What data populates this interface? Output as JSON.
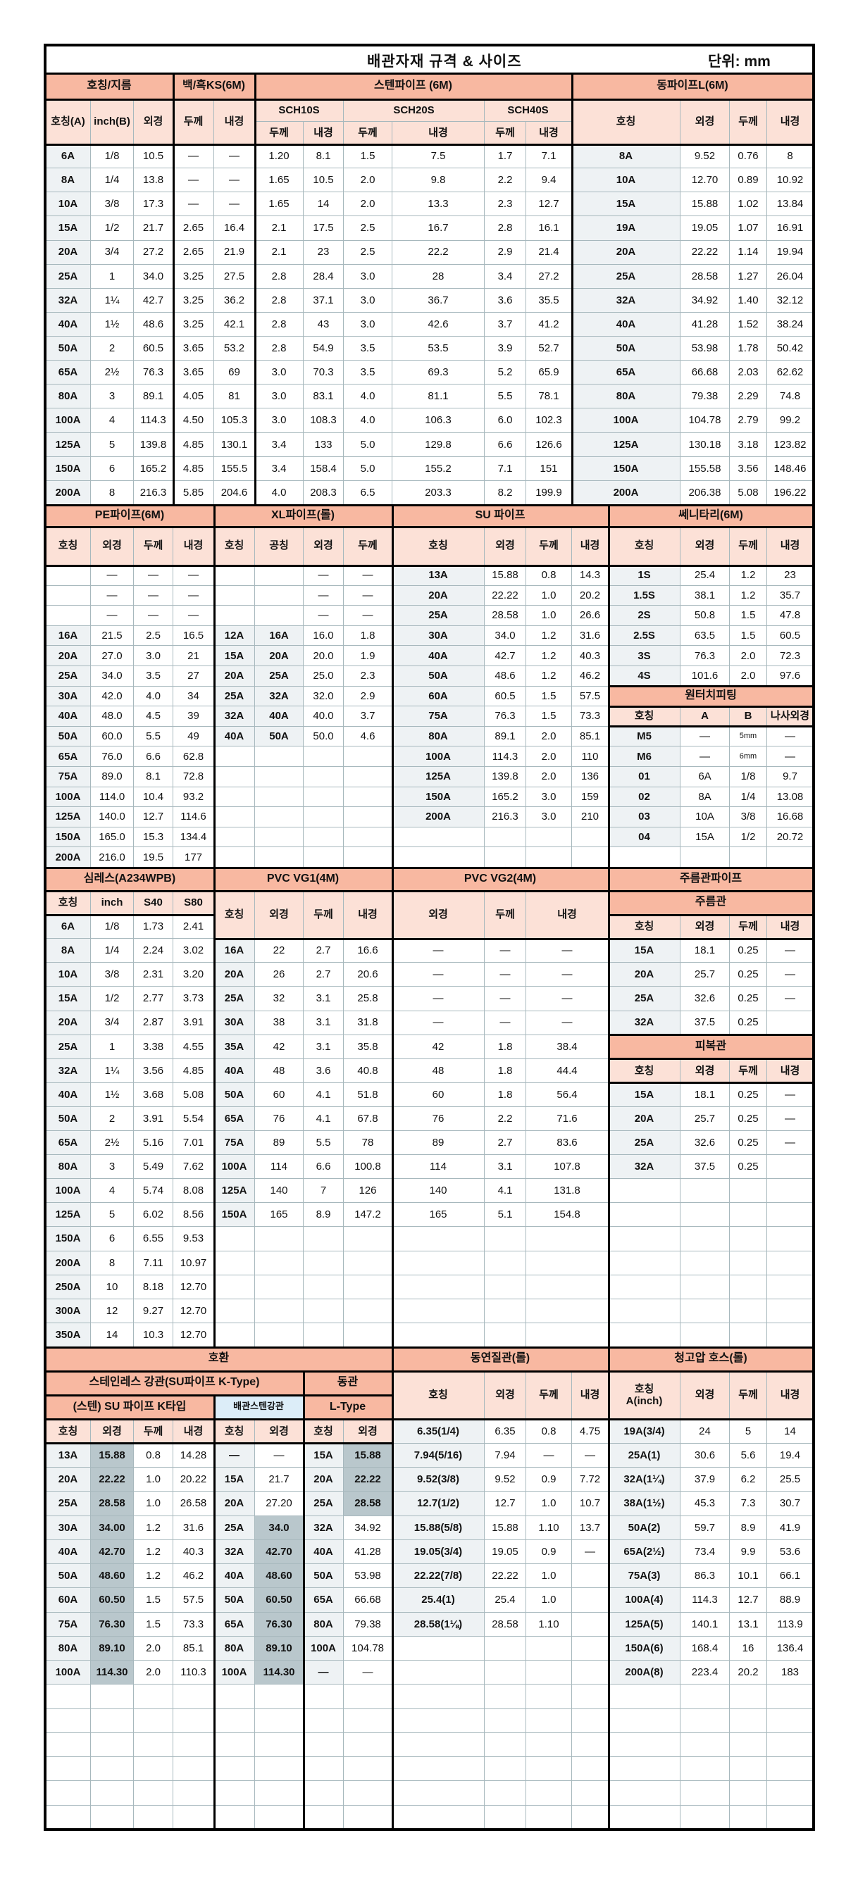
{
  "title": "배관자재 규격 & 사이즈",
  "unit": "단위: mm",
  "colors": {
    "section_header": "#f8b8a1",
    "column_header": "#fce1d7",
    "key_column": "#eef2f4",
    "highlight": "#b9c7cc",
    "sub_header_blue": "#dcedf8",
    "grid": "#a7b8bd"
  },
  "band1": {
    "groups": [
      "호칭/지름",
      "백/흑KS(6M)",
      "스텐파이프 (6M)",
      "동파이프L(6M)"
    ],
    "headers": [
      "호칭(A)",
      "inch(B)",
      "외경",
      "두께",
      "내경",
      "SCH10S",
      "두께",
      "내경",
      "SCH20S",
      "두께",
      "내경",
      "SCH40S",
      "두께",
      "내경",
      "호칭",
      "외경",
      "두께",
      "내경"
    ],
    "rows": [
      [
        "6A",
        "1/8",
        "10.5",
        "—",
        "—",
        "1.20",
        "8.1",
        "1.5",
        "7.5",
        "1.7",
        "7.1"
      ],
      [
        "8A",
        "1/4",
        "13.8",
        "—",
        "—",
        "1.65",
        "10.5",
        "2.0",
        "9.8",
        "2.2",
        "9.4"
      ],
      [
        "10A",
        "3/8",
        "17.3",
        "—",
        "—",
        "1.65",
        "14",
        "2.0",
        "13.3",
        "2.3",
        "12.7"
      ],
      [
        "15A",
        "1/2",
        "21.7",
        "2.65",
        "16.4",
        "2.1",
        "17.5",
        "2.5",
        "16.7",
        "2.8",
        "16.1"
      ],
      [
        "20A",
        "3/4",
        "27.2",
        "2.65",
        "21.9",
        "2.1",
        "23",
        "2.5",
        "22.2",
        "2.9",
        "21.4"
      ],
      [
        "25A",
        "1",
        "34.0",
        "3.25",
        "27.5",
        "2.8",
        "28.4",
        "3.0",
        "28",
        "3.4",
        "27.2"
      ],
      [
        "32A",
        "1¼",
        "42.7",
        "3.25",
        "36.2",
        "2.8",
        "37.1",
        "3.0",
        "36.7",
        "3.6",
        "35.5"
      ],
      [
        "40A",
        "1½",
        "48.6",
        "3.25",
        "42.1",
        "2.8",
        "43",
        "3.0",
        "42.6",
        "3.7",
        "41.2"
      ],
      [
        "50A",
        "2",
        "60.5",
        "3.65",
        "53.2",
        "2.8",
        "54.9",
        "3.5",
        "53.5",
        "3.9",
        "52.7"
      ],
      [
        "65A",
        "2½",
        "76.3",
        "3.65",
        "69",
        "3.0",
        "70.3",
        "3.5",
        "69.3",
        "5.2",
        "65.9"
      ],
      [
        "80A",
        "3",
        "89.1",
        "4.05",
        "81",
        "3.0",
        "83.1",
        "4.0",
        "81.1",
        "5.5",
        "78.1"
      ],
      [
        "100A",
        "4",
        "114.3",
        "4.50",
        "105.3",
        "3.0",
        "108.3",
        "4.0",
        "106.3",
        "6.0",
        "102.3"
      ],
      [
        "125A",
        "5",
        "139.8",
        "4.85",
        "130.1",
        "3.4",
        "133",
        "5.0",
        "129.8",
        "6.6",
        "126.6"
      ],
      [
        "150A",
        "6",
        "165.2",
        "4.85",
        "155.5",
        "3.4",
        "158.4",
        "5.0",
        "155.2",
        "7.1",
        "151"
      ],
      [
        "200A",
        "8",
        "216.3",
        "5.85",
        "204.6",
        "4.0",
        "208.3",
        "6.5",
        "203.3",
        "8.2",
        "199.9"
      ]
    ],
    "copper_rows": [
      [
        "8A",
        "9.52",
        "0.76",
        "8"
      ],
      [
        "10A",
        "12.70",
        "0.89",
        "10.92"
      ],
      [
        "15A",
        "15.88",
        "1.02",
        "13.84"
      ],
      [
        "19A",
        "19.05",
        "1.07",
        "16.91"
      ],
      [
        "20A",
        "22.22",
        "1.14",
        "19.94"
      ],
      [
        "25A",
        "28.58",
        "1.27",
        "26.04"
      ],
      [
        "32A",
        "34.92",
        "1.40",
        "32.12"
      ],
      [
        "40A",
        "41.28",
        "1.52",
        "38.24"
      ],
      [
        "50A",
        "53.98",
        "1.78",
        "50.42"
      ],
      [
        "65A",
        "66.68",
        "2.03",
        "62.62"
      ],
      [
        "80A",
        "79.38",
        "2.29",
        "74.8"
      ],
      [
        "100A",
        "104.78",
        "2.79",
        "99.2"
      ],
      [
        "125A",
        "130.18",
        "3.18",
        "123.82"
      ],
      [
        "150A",
        "155.58",
        "3.56",
        "148.46"
      ],
      [
        "200A",
        "206.38",
        "5.08",
        "196.22"
      ]
    ]
  },
  "band2": {
    "pe": {
      "title": "PE파이프(6M)",
      "headers": [
        "호칭",
        "외경",
        "두께",
        "내경"
      ],
      "rows": [
        [
          "",
          "—",
          "—",
          "—"
        ],
        [
          "",
          "—",
          "—",
          "—"
        ],
        [
          "",
          "—",
          "—",
          "—"
        ],
        [
          "16A",
          "21.5",
          "2.5",
          "16.5"
        ],
        [
          "20A",
          "27.0",
          "3.0",
          "21"
        ],
        [
          "25A",
          "34.0",
          "3.5",
          "27"
        ],
        [
          "30A",
          "42.0",
          "4.0",
          "34"
        ],
        [
          "40A",
          "48.0",
          "4.5",
          "39"
        ],
        [
          "50A",
          "60.0",
          "5.5",
          "49"
        ],
        [
          "65A",
          "76.0",
          "6.6",
          "62.8"
        ],
        [
          "75A",
          "89.0",
          "8.1",
          "72.8"
        ],
        [
          "100A",
          "114.0",
          "10.4",
          "93.2"
        ],
        [
          "125A",
          "140.0",
          "12.7",
          "114.6"
        ],
        [
          "150A",
          "165.0",
          "15.3",
          "134.4"
        ],
        [
          "200A",
          "216.0",
          "19.5",
          "177"
        ]
      ]
    },
    "xl": {
      "title": "XL파이프(롤)",
      "headers": [
        "호칭",
        "공칭",
        "외경",
        "두께"
      ],
      "rows": [
        [
          "",
          "",
          "—",
          "—"
        ],
        [
          "",
          "",
          "—",
          "—"
        ],
        [
          "",
          "",
          "—",
          "—"
        ],
        [
          "12A",
          "16A",
          "16.0",
          "1.8"
        ],
        [
          "15A",
          "20A",
          "20.0",
          "1.9"
        ],
        [
          "20A",
          "25A",
          "25.0",
          "2.3"
        ],
        [
          "25A",
          "32A",
          "32.0",
          "2.9"
        ],
        [
          "32A",
          "40A",
          "40.0",
          "3.7"
        ],
        [
          "40A",
          "50A",
          "50.0",
          "4.6"
        ]
      ]
    },
    "su": {
      "title": "SU 파이프",
      "headers": [
        "호칭",
        "외경",
        "두께",
        "내경"
      ],
      "rows": [
        [
          "13A",
          "15.88",
          "0.8",
          "14.3"
        ],
        [
          "20A",
          "22.22",
          "1.0",
          "20.2"
        ],
        [
          "25A",
          "28.58",
          "1.0",
          "26.6"
        ],
        [
          "30A",
          "34.0",
          "1.2",
          "31.6"
        ],
        [
          "40A",
          "42.7",
          "1.2",
          "40.3"
        ],
        [
          "50A",
          "48.6",
          "1.2",
          "46.2"
        ],
        [
          "60A",
          "60.5",
          "1.5",
          "57.5"
        ],
        [
          "75A",
          "76.3",
          "1.5",
          "73.3"
        ],
        [
          "80A",
          "89.1",
          "2.0",
          "85.1"
        ],
        [
          "100A",
          "114.3",
          "2.0",
          "110"
        ],
        [
          "125A",
          "139.8",
          "2.0",
          "136"
        ],
        [
          "150A",
          "165.2",
          "3.0",
          "159"
        ],
        [
          "200A",
          "216.3",
          "3.0",
          "210"
        ]
      ]
    },
    "sanitary": {
      "title": "쎄니타리(6M)",
      "headers": [
        "호칭",
        "외경",
        "두께",
        "내경"
      ],
      "rows": [
        [
          "1S",
          "25.4",
          "1.2",
          "23"
        ],
        [
          "1.5S",
          "38.1",
          "1.2",
          "35.7"
        ],
        [
          "2S",
          "50.8",
          "1.5",
          "47.8"
        ],
        [
          "2.5S",
          "63.5",
          "1.5",
          "60.5"
        ],
        [
          "3S",
          "76.3",
          "2.0",
          "72.3"
        ],
        [
          "4S",
          "101.6",
          "2.0",
          "97.6"
        ]
      ]
    },
    "fitting": {
      "title": "원터치피팅",
      "headers": [
        "호칭",
        "A",
        "B",
        "나사외경"
      ],
      "rows": [
        [
          "M5",
          "—",
          "5mm",
          "—"
        ],
        [
          "M6",
          "—",
          "6mm",
          "—"
        ],
        [
          "01",
          "6A",
          "1/8",
          "9.7"
        ],
        [
          "02",
          "8A",
          "1/4",
          "13.08"
        ],
        [
          "03",
          "10A",
          "3/8",
          "16.68"
        ],
        [
          "04",
          "15A",
          "1/2",
          "20.72"
        ]
      ]
    }
  },
  "band3": {
    "seamless": {
      "title": "심레스(A234WPB)",
      "headers": [
        "호칭",
        "inch",
        "S40",
        "S80"
      ],
      "rows": [
        [
          "6A",
          "1/8",
          "1.73",
          "2.41"
        ],
        [
          "8A",
          "1/4",
          "2.24",
          "3.02"
        ],
        [
          "10A",
          "3/8",
          "2.31",
          "3.20"
        ],
        [
          "15A",
          "1/2",
          "2.77",
          "3.73"
        ],
        [
          "20A",
          "3/4",
          "2.87",
          "3.91"
        ],
        [
          "25A",
          "1",
          "3.38",
          "4.55"
        ],
        [
          "32A",
          "1¼",
          "3.56",
          "4.85"
        ],
        [
          "40A",
          "1½",
          "3.68",
          "5.08"
        ],
        [
          "50A",
          "2",
          "3.91",
          "5.54"
        ],
        [
          "65A",
          "2½",
          "5.16",
          "7.01"
        ],
        [
          "80A",
          "3",
          "5.49",
          "7.62"
        ],
        [
          "100A",
          "4",
          "5.74",
          "8.08"
        ],
        [
          "125A",
          "5",
          "6.02",
          "8.56"
        ],
        [
          "150A",
          "6",
          "6.55",
          "9.53"
        ],
        [
          "200A",
          "8",
          "7.11",
          "10.97"
        ],
        [
          "250A",
          "10",
          "8.18",
          "12.70"
        ],
        [
          "300A",
          "12",
          "9.27",
          "12.70"
        ],
        [
          "350A",
          "14",
          "10.3",
          "12.70"
        ]
      ]
    },
    "vg1": {
      "title": "PVC VG1(4M)",
      "headers": [
        "호칭",
        "외경",
        "두께",
        "내경"
      ],
      "rows": [
        [
          "16A",
          "22",
          "2.7",
          "16.6"
        ],
        [
          "20A",
          "26",
          "2.7",
          "20.6"
        ],
        [
          "25A",
          "32",
          "3.1",
          "25.8"
        ],
        [
          "30A",
          "38",
          "3.1",
          "31.8"
        ],
        [
          "35A",
          "42",
          "3.1",
          "35.8"
        ],
        [
          "40A",
          "48",
          "3.6",
          "40.8"
        ],
        [
          "50A",
          "60",
          "4.1",
          "51.8"
        ],
        [
          "65A",
          "76",
          "4.1",
          "67.8"
        ],
        [
          "75A",
          "89",
          "5.5",
          "78"
        ],
        [
          "100A",
          "114",
          "6.6",
          "100.8"
        ],
        [
          "125A",
          "140",
          "7",
          "126"
        ],
        [
          "150A",
          "165",
          "8.9",
          "147.2"
        ]
      ]
    },
    "vg2": {
      "title": "PVC VG2(4M)",
      "headers": [
        "외경",
        "두께",
        "내경"
      ],
      "rows": [
        [
          "—",
          "—",
          "—"
        ],
        [
          "—",
          "—",
          "—"
        ],
        [
          "—",
          "—",
          "—"
        ],
        [
          "—",
          "—",
          "—"
        ],
        [
          "42",
          "1.8",
          "38.4"
        ],
        [
          "48",
          "1.8",
          "44.4"
        ],
        [
          "60",
          "1.8",
          "56.4"
        ],
        [
          "76",
          "2.2",
          "71.6"
        ],
        [
          "89",
          "2.7",
          "83.6"
        ],
        [
          "114",
          "3.1",
          "107.8"
        ],
        [
          "140",
          "4.1",
          "131.8"
        ],
        [
          "165",
          "5.1",
          "154.8"
        ]
      ]
    },
    "corrugated": {
      "title": "주름관파이프",
      "flex": {
        "title": "주름관",
        "headers": [
          "호칭",
          "외경",
          "두께",
          "내경"
        ],
        "rows": [
          [
            "15A",
            "18.1",
            "0.25",
            "—"
          ],
          [
            "20A",
            "25.7",
            "0.25",
            "—"
          ],
          [
            "25A",
            "32.6",
            "0.25",
            "—"
          ],
          [
            "32A",
            "37.5",
            "0.25",
            ""
          ]
        ]
      },
      "coated": {
        "title": "피복관",
        "headers": [
          "호칭",
          "외경",
          "두께",
          "내경"
        ],
        "rows": [
          [
            "15A",
            "18.1",
            "0.25",
            "—"
          ],
          [
            "20A",
            "25.7",
            "0.25",
            "—"
          ],
          [
            "25A",
            "32.6",
            "0.25",
            "—"
          ],
          [
            "32A",
            "37.5",
            "0.25",
            ""
          ]
        ]
      }
    }
  },
  "band4": {
    "compat": {
      "title": "호환",
      "group_stainless": "스테인레스 강관(SU파이프 K-Type)",
      "group_copper": "동관",
      "sub_k": "(스텐) SU 파이프 K타입",
      "sub_pipe": "배관스텐강관",
      "sub_l": "L-Type",
      "headers": [
        "호칭",
        "외경",
        "두께",
        "내경",
        "호칭",
        "외경",
        "호칭",
        "외경"
      ],
      "rows": [
        [
          "13A",
          "15.88",
          "0.8",
          "14.28",
          "—",
          "—",
          "15A",
          "15.88"
        ],
        [
          "20A",
          "22.22",
          "1.0",
          "20.22",
          "15A",
          "21.7",
          "20A",
          "22.22"
        ],
        [
          "25A",
          "28.58",
          "1.0",
          "26.58",
          "20A",
          "27.20",
          "25A",
          "28.58"
        ],
        [
          "30A",
          "34.00",
          "1.2",
          "31.6",
          "25A",
          "34.0",
          "32A",
          "34.92"
        ],
        [
          "40A",
          "42.70",
          "1.2",
          "40.3",
          "32A",
          "42.70",
          "40A",
          "41.28"
        ],
        [
          "50A",
          "48.60",
          "1.2",
          "46.2",
          "40A",
          "48.60",
          "50A",
          "53.98"
        ],
        [
          "60A",
          "60.50",
          "1.5",
          "57.5",
          "50A",
          "60.50",
          "65A",
          "66.68"
        ],
        [
          "75A",
          "76.30",
          "1.5",
          "73.3",
          "65A",
          "76.30",
          "80A",
          "79.38"
        ],
        [
          "80A",
          "89.10",
          "2.0",
          "85.1",
          "80A",
          "89.10",
          "100A",
          "104.78"
        ],
        [
          "100A",
          "114.30",
          "2.0",
          "110.3",
          "100A",
          "114.30",
          "—",
          "—"
        ]
      ]
    },
    "soft_copper": {
      "title": "동연질관(롤)",
      "headers": [
        "호칭",
        "외경",
        "두께",
        "내경"
      ],
      "rows": [
        [
          "6.35(1/4)",
          "6.35",
          "0.8",
          "4.75"
        ],
        [
          "7.94(5/16)",
          "7.94",
          "—",
          "—"
        ],
        [
          "9.52(3/8)",
          "9.52",
          "0.9",
          "7.72"
        ],
        [
          "12.7(1/2)",
          "12.7",
          "1.0",
          "10.7"
        ],
        [
          "15.88(5/8)",
          "15.88",
          "1.10",
          "13.7"
        ],
        [
          "19.05(3/4)",
          "19.05",
          "0.9",
          "—"
        ],
        [
          "22.22(7/8)",
          "22.22",
          "1.0",
          ""
        ],
        [
          "25.4(1)",
          "25.4",
          "1.0",
          ""
        ],
        [
          "28.58(1⅛)",
          "28.58",
          "1.10",
          ""
        ]
      ]
    },
    "hose": {
      "title": "청고압 호스(롤)",
      "headers": [
        "호칭\nA(inch)",
        "외경",
        "두께",
        "내경"
      ],
      "rows": [
        [
          "19A(3/4)",
          "24",
          "5",
          "14"
        ],
        [
          "25A(1)",
          "30.6",
          "5.6",
          "19.4"
        ],
        [
          "32A(1¼)",
          "37.9",
          "6.2",
          "25.5"
        ],
        [
          "38A(1½)",
          "45.3",
          "7.3",
          "30.7"
        ],
        [
          "50A(2)",
          "59.7",
          "8.9",
          "41.9"
        ],
        [
          "65A(2½)",
          "73.4",
          "9.9",
          "53.6"
        ],
        [
          "75A(3)",
          "86.3",
          "10.1",
          "66.1"
        ],
        [
          "100A(4)",
          "114.3",
          "12.7",
          "88.9"
        ],
        [
          "125A(5)",
          "140.1",
          "13.1",
          "113.9"
        ],
        [
          "150A(6)",
          "168.4",
          "16",
          "136.4"
        ],
        [
          "200A(8)",
          "223.4",
          "20.2",
          "183"
        ]
      ]
    }
  }
}
